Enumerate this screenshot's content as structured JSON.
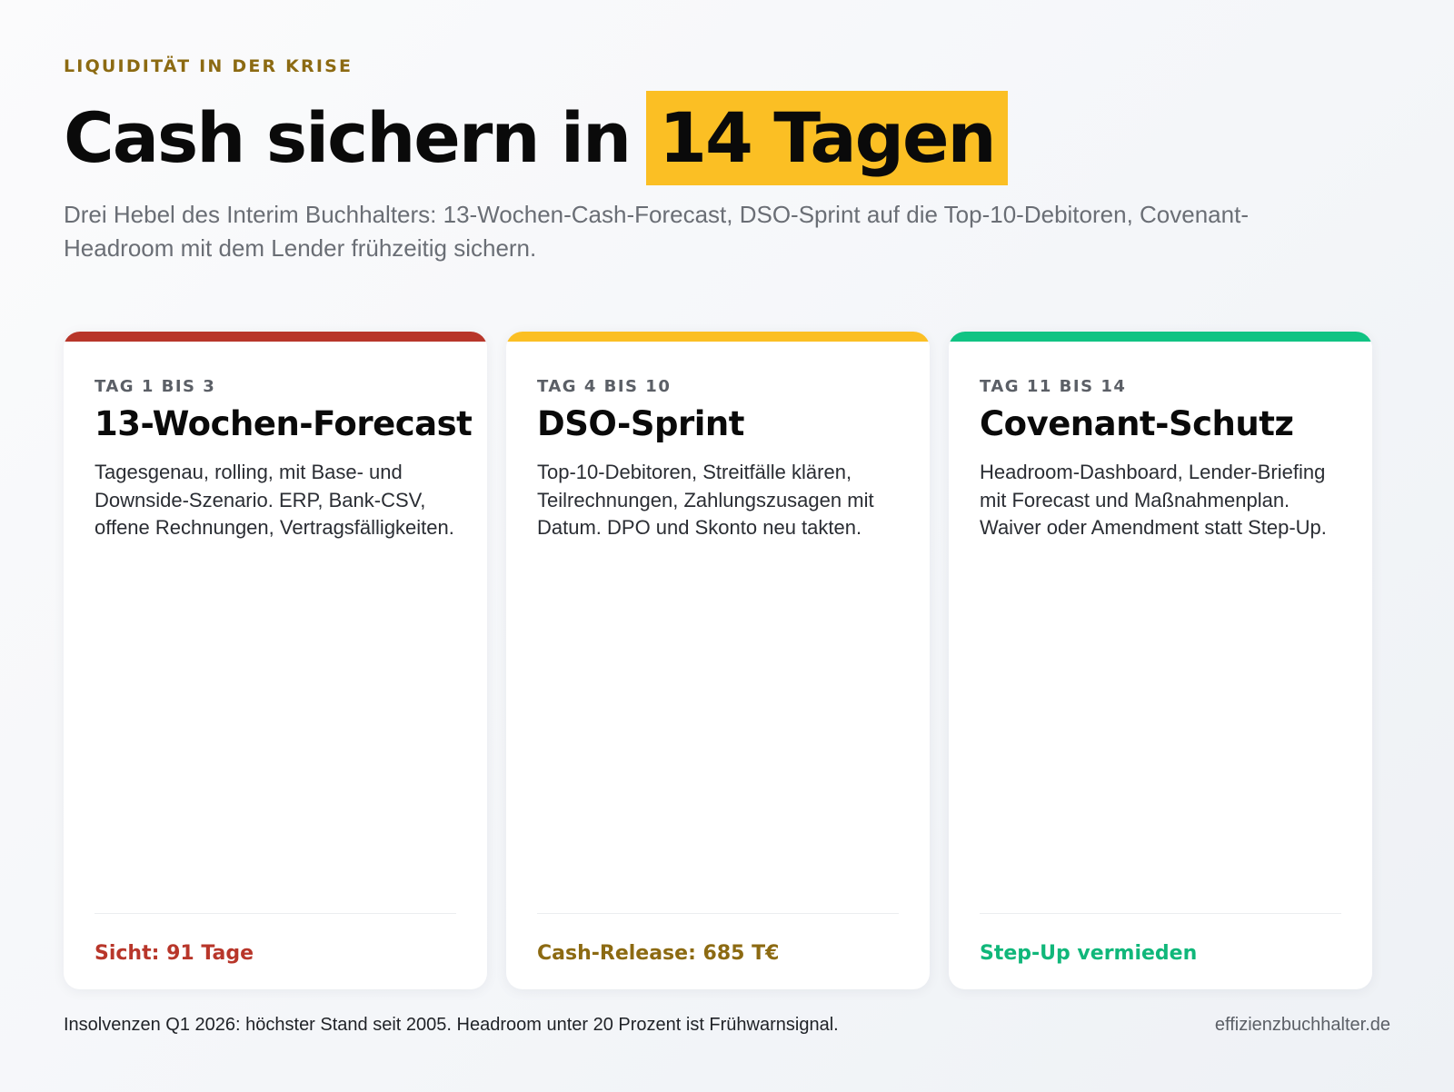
{
  "header": {
    "eyebrow": "LIQUIDITÄT IN DER KRISE",
    "title_plain": "Cash sichern in",
    "title_highlight": "14 Tagen",
    "subtitle": "Drei Hebel des Interim Buchhalters: 13-Wochen-Cash-Forecast, DSO-Sprint auf die Top-10-Debitoren, Covenant-Headroom mit dem Lender frühzeitig sichern."
  },
  "colors": {
    "highlight": "#fbbf24",
    "eyebrow": "#8c6a12"
  },
  "cards": [
    {
      "phase": "TAG 1 BIS 3",
      "title": "13-Wochen-Forecast",
      "text": "Tagesgenau, rolling, mit Base- und Downside-Szenario. ERP, Bank-CSV, offene Rechnungen, Vertragsfälligkeiten.",
      "result": "Sicht: 91 Tage",
      "accent": "#b8362a",
      "result_color": "#b8362a"
    },
    {
      "phase": "TAG 4 BIS 10",
      "title": "DSO-Sprint",
      "text": "Top-10-Debitoren, Streitfälle klären, Teilrechnungen, Zahlungszusagen mit Datum. DPO und Skonto neu takten.",
      "result": "Cash-Release: 685 T€",
      "accent": "#fbbf24",
      "result_color": "#8c6a12"
    },
    {
      "phase": "TAG 11 BIS 14",
      "title": "Covenant-Schutz",
      "text": "Headroom-Dashboard, Lender-Briefing mit Forecast und Maßnahmenplan. Waiver oder Amendment statt Step-Up.",
      "result": "Step-Up vermieden",
      "accent": "#10c383",
      "result_color": "#10b77a"
    }
  ],
  "footer": {
    "note": "Insolvenzen Q1 2026: höchster Stand seit 2005. Headroom unter 20 Prozent ist Frühwarnsignal.",
    "site": "effizienzbuchhalter.de"
  }
}
